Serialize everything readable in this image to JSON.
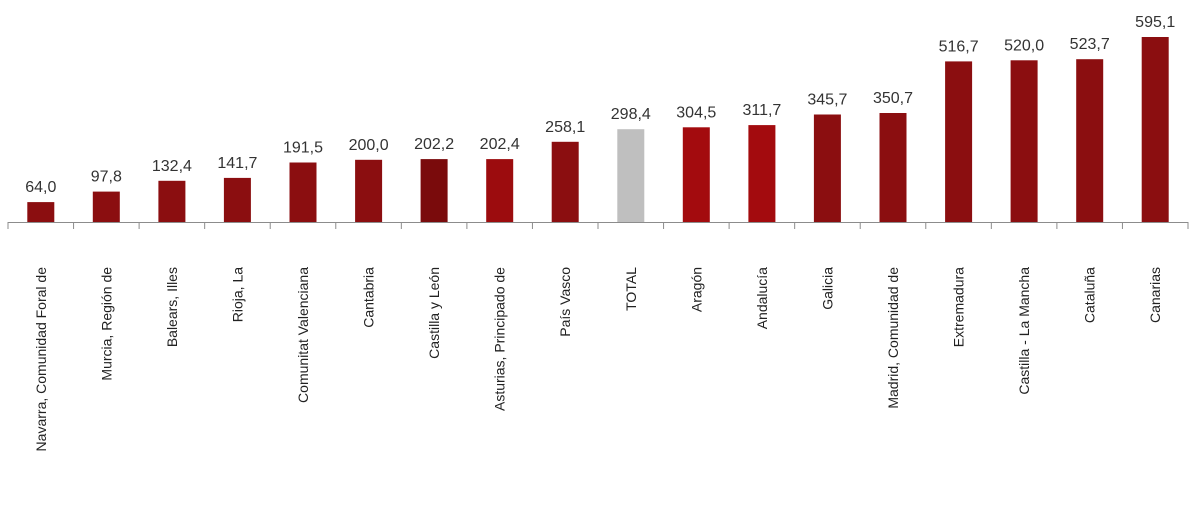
{
  "chart_data": {
    "type": "bar",
    "categories": [
      "Navarra, Comunidad Foral de",
      "Murcia, Región de",
      "Balears, Illes",
      "Rioja, La",
      "Comunitat Valenciana",
      "Cantabria",
      "Castilla y León",
      "Asturias, Principado de",
      "País Vasco",
      "TOTAL",
      "Aragón",
      "Andalucía",
      "Galicia",
      "Madrid, Comunidad de",
      "Extremadura",
      "Castilla - La Mancha",
      "Cataluña",
      "Canarias"
    ],
    "values": [
      64.0,
      97.8,
      132.4,
      141.7,
      191.5,
      200.0,
      202.2,
      202.4,
      258.1,
      298.4,
      304.5,
      311.7,
      345.7,
      350.7,
      516.7,
      520.0,
      523.7,
      595.1
    ],
    "value_labels": [
      "64,0",
      "97,8",
      "132,4",
      "141,7",
      "191,5",
      "200,0",
      "202,2",
      "202,4",
      "258,1",
      "298,4",
      "304,5",
      "311,7",
      "345,7",
      "350,7",
      "516,7",
      "520,0",
      "523,7",
      "595,1"
    ],
    "bar_colors": [
      "#8b0e10",
      "#8b0e10",
      "#8b0e10",
      "#8b0e10",
      "#8b0e10",
      "#8b0e10",
      "#7a0b0c",
      "#9c0c0e",
      "#8b0e10",
      "#bfbfbf",
      "#a30b0e",
      "#a30b0e",
      "#8b0e10",
      "#8b0e10",
      "#8b0e10",
      "#8b0e10",
      "#8b0e10",
      "#8b0e10"
    ],
    "ylim": [
      0,
      600
    ],
    "grid": false,
    "legend": "none",
    "title": "",
    "xlabel": "",
    "ylabel": ""
  }
}
